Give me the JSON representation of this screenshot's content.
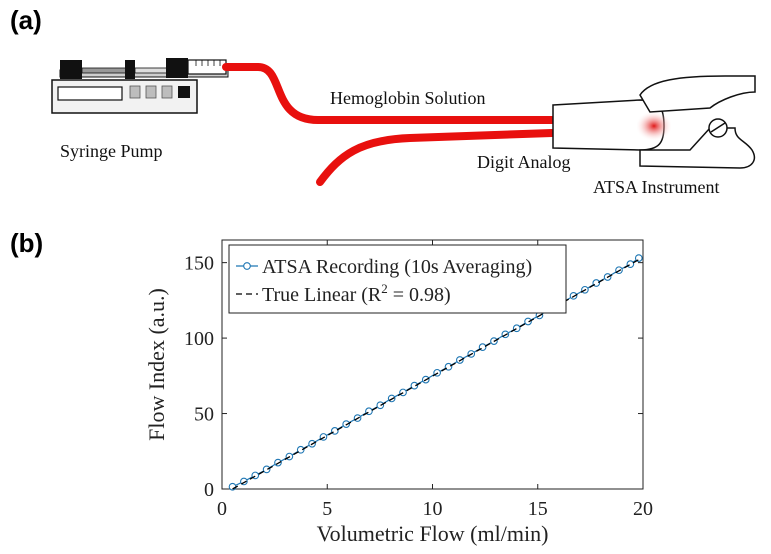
{
  "panels": {
    "a": "(a)",
    "b": "(b)"
  },
  "diagram": {
    "syringe_pump_label": "Syringe Pump",
    "solution_label": "Hemoglobin Solution",
    "digit_label": "Digit Analog",
    "instrument_label": "ATSA Instrument",
    "tube_color": "#e8100e",
    "pump_color": "#f2f2f2",
    "dark_color": "#111111"
  },
  "chart_data": {
    "type": "line",
    "xlabel": "Volumetric Flow (ml/min)",
    "ylabel": "Flow Index (a.u.)",
    "xlim": [
      0,
      20
    ],
    "ylim": [
      0,
      165
    ],
    "xticks": [
      "0",
      "5",
      "10",
      "15",
      "20"
    ],
    "yticks": [
      "0",
      "50",
      "100",
      "150"
    ],
    "legend_position": "top-left",
    "grid": false,
    "series": [
      {
        "name": "ATSA Recording (10s Averaging)",
        "style": "line-circle",
        "color": "#1f77b4",
        "x": [
          0.5,
          1.04,
          1.58,
          2.12,
          2.66,
          3.2,
          3.74,
          4.28,
          4.82,
          5.36,
          5.9,
          6.44,
          6.98,
          7.52,
          8.06,
          8.6,
          9.14,
          9.68,
          10.22,
          10.76,
          11.3,
          11.84,
          12.38,
          12.92,
          13.46,
          14.0,
          14.54,
          15.08,
          15.62,
          16.16,
          16.7,
          17.24,
          17.78,
          18.32,
          18.86,
          19.4,
          19.8
        ],
        "y": [
          1.5,
          5.0,
          9.0,
          13.0,
          17.5,
          21.5,
          26.0,
          30.0,
          34.5,
          38.5,
          43.0,
          47.0,
          51.5,
          55.5,
          60.0,
          64.0,
          68.5,
          72.5,
          77.0,
          81.0,
          85.5,
          89.5,
          94.0,
          98.0,
          102.5,
          106.5,
          111.0,
          115.0,
          119.5,
          123.5,
          128.0,
          132.0,
          136.5,
          140.5,
          145.0,
          149.0,
          153.0
        ]
      },
      {
        "name": "True Linear (R",
        "name_sup": "2",
        "name_rest": " = 0.98)",
        "style": "dashed",
        "color": "#000000",
        "x": [
          0.5,
          19.8
        ],
        "y": [
          0.0,
          152.0
        ]
      }
    ]
  }
}
